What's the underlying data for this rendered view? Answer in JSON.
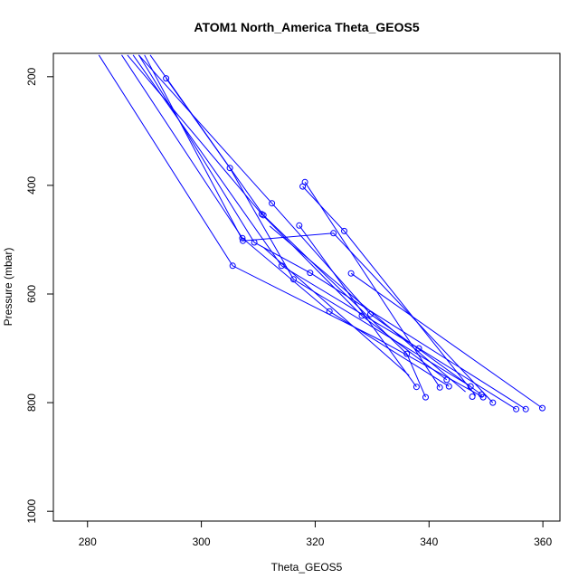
{
  "chart_data": {
    "type": "line",
    "title": "ATOM1 North_America Theta_GEOS5",
    "xlabel": "Theta_GEOS5",
    "ylabel": "Pressure (mbar)",
    "xlim": [
      274,
      363
    ],
    "ylim": [
      1018,
      157
    ],
    "y_reversed": true,
    "x_ticks": [
      280,
      300,
      320,
      340,
      360
    ],
    "y_ticks": [
      200,
      400,
      600,
      800,
      1000
    ],
    "grid": false,
    "legend": "none",
    "color": "#0000ff",
    "series": [
      {
        "x": [
          282,
          305.5,
          330.5,
          349.5
        ],
        "y": [
          160,
          548,
          680,
          790
        ]
      },
      {
        "x": [
          286,
          307.2,
          322.5,
          343.5
        ],
        "y": [
          160,
          497,
          632,
          770
        ]
      },
      {
        "x": [
          290,
          307.3,
          323.2,
          351.2
        ],
        "y": [
          160,
          502,
          488,
          800
        ]
      },
      {
        "x": [
          293.8,
          305,
          316.2,
          347.3
        ],
        "y": [
          203,
          368,
          573,
          770
        ]
      },
      {
        "x": [
          289,
          309.3,
          319.1,
          357
        ],
        "y": [
          160,
          505,
          561,
          812
        ]
      },
      {
        "x": [
          287,
          310.6,
          328.2,
          343.1
        ],
        "y": [
          160,
          453,
          640,
          758
        ]
      },
      {
        "x": [
          291,
          310.9,
          336.1,
          339.4
        ],
        "y": [
          160,
          455,
          710,
          790
        ]
      },
      {
        "x": [
          289,
          312.4,
          329.7,
          349.2
        ],
        "y": [
          160,
          433,
          637,
          785
        ]
      },
      {
        "x": [
          288,
          314.1,
          338.2,
          355.3
        ],
        "y": [
          160,
          548,
          700,
          812
        ]
      },
      {
        "x": [
          317.2,
          337.8
        ],
        "y": [
          474,
          771
        ]
      },
      {
        "x": [
          318.2,
          341.9
        ],
        "y": [
          394,
          772
        ]
      },
      {
        "x": [
          317.8,
          325.1,
          348.2
        ],
        "y": [
          402,
          484,
          787
        ]
      },
      {
        "x": [
          326.3,
          359.9
        ],
        "y": [
          562,
          810
        ]
      },
      {
        "x": [
          312,
          346.4
        ],
        "y": [
          475,
          780
        ]
      },
      {
        "x": [
          311,
          336.5
        ],
        "y": [
          515,
          750
        ]
      }
    ],
    "markers": [
      {
        "x": 293.8,
        "y": 203
      },
      {
        "x": 305,
        "y": 368
      },
      {
        "x": 307.2,
        "y": 497
      },
      {
        "x": 307.3,
        "y": 502
      },
      {
        "x": 305.5,
        "y": 548
      },
      {
        "x": 309.3,
        "y": 505
      },
      {
        "x": 310.6,
        "y": 453
      },
      {
        "x": 310.9,
        "y": 455
      },
      {
        "x": 312.4,
        "y": 433
      },
      {
        "x": 314.1,
        "y": 548
      },
      {
        "x": 316.2,
        "y": 573
      },
      {
        "x": 317.2,
        "y": 474
      },
      {
        "x": 317.8,
        "y": 402
      },
      {
        "x": 318.2,
        "y": 394
      },
      {
        "x": 319.1,
        "y": 561
      },
      {
        "x": 322.5,
        "y": 632
      },
      {
        "x": 323.2,
        "y": 488
      },
      {
        "x": 325.1,
        "y": 484
      },
      {
        "x": 326.3,
        "y": 562
      },
      {
        "x": 328.2,
        "y": 640
      },
      {
        "x": 329.7,
        "y": 637
      },
      {
        "x": 336.1,
        "y": 710
      },
      {
        "x": 337.8,
        "y": 771
      },
      {
        "x": 338.2,
        "y": 700
      },
      {
        "x": 339.4,
        "y": 790
      },
      {
        "x": 341.9,
        "y": 772
      },
      {
        "x": 343.1,
        "y": 758
      },
      {
        "x": 343.5,
        "y": 770
      },
      {
        "x": 347.3,
        "y": 770
      },
      {
        "x": 347.6,
        "y": 789
      },
      {
        "x": 349.2,
        "y": 785
      },
      {
        "x": 349.5,
        "y": 790
      },
      {
        "x": 351.2,
        "y": 800
      },
      {
        "x": 355.3,
        "y": 812
      },
      {
        "x": 357,
        "y": 812
      },
      {
        "x": 359.9,
        "y": 810
      }
    ]
  }
}
